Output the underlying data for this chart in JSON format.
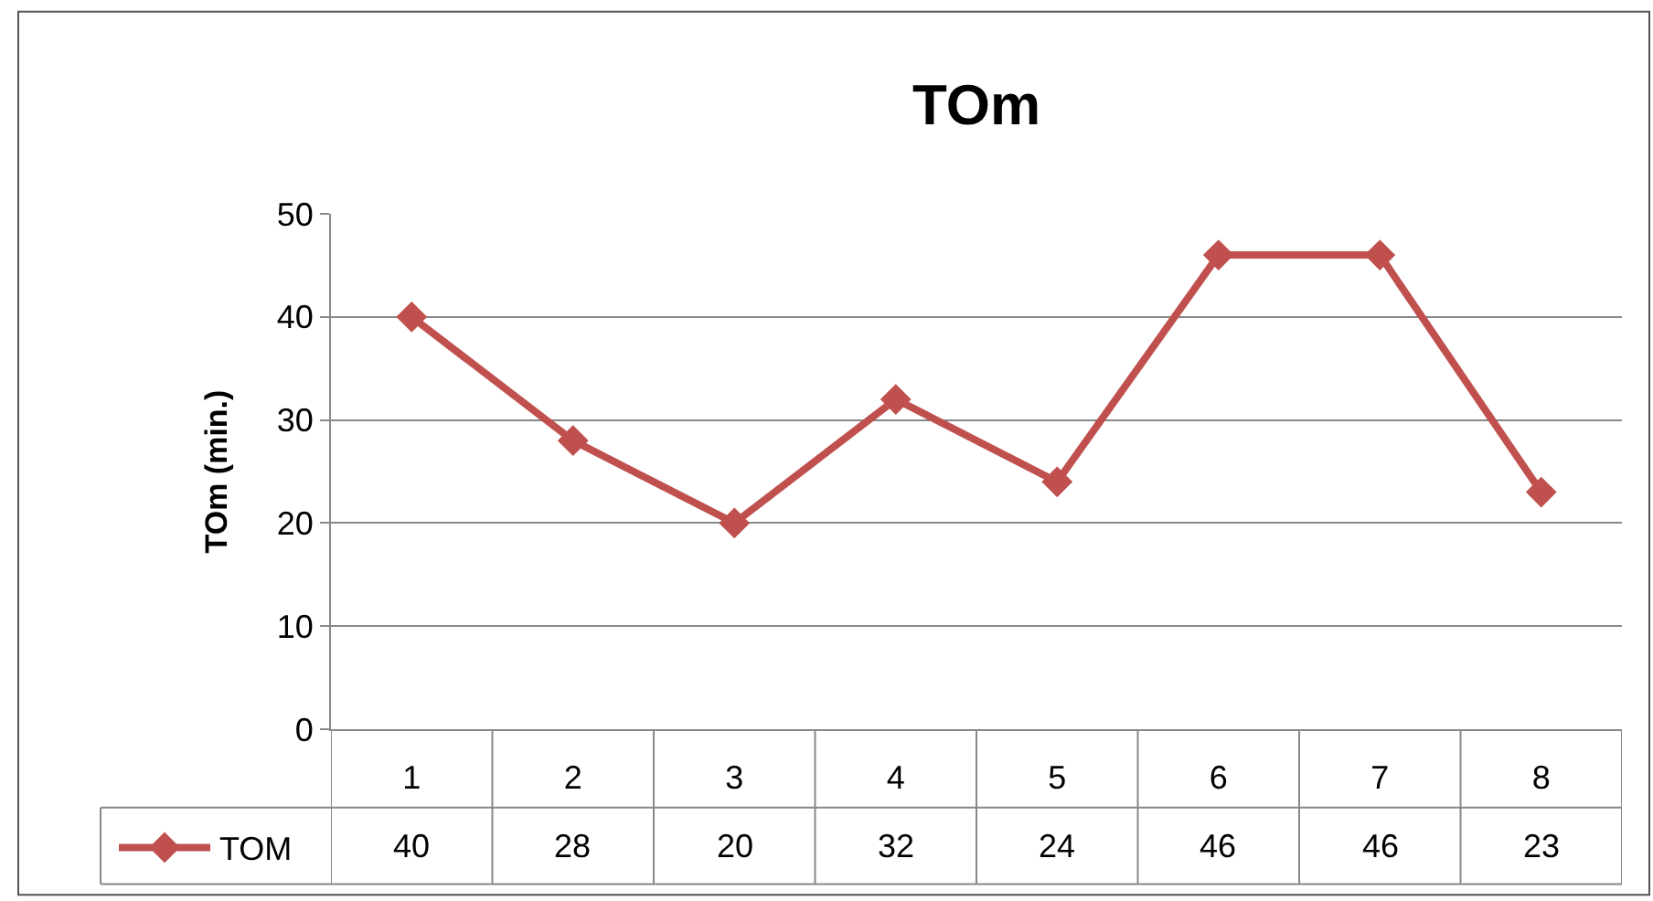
{
  "chart_data": {
    "type": "line",
    "title": "TOm",
    "ylabel": "TOm (min.)",
    "categories": [
      "1",
      "2",
      "3",
      "4",
      "5",
      "6",
      "7",
      "8"
    ],
    "series": [
      {
        "name": "TOM",
        "color": "#c0504d",
        "values": [
          40,
          28,
          20,
          32,
          24,
          46,
          46,
          23
        ]
      }
    ],
    "ylim": [
      0,
      50
    ],
    "yticks": [
      0,
      10,
      20,
      30,
      40,
      50
    ],
    "grid": "y",
    "legend": "bottom left",
    "data_labels": true,
    "marker": "diamond",
    "line_style": "solid"
  }
}
